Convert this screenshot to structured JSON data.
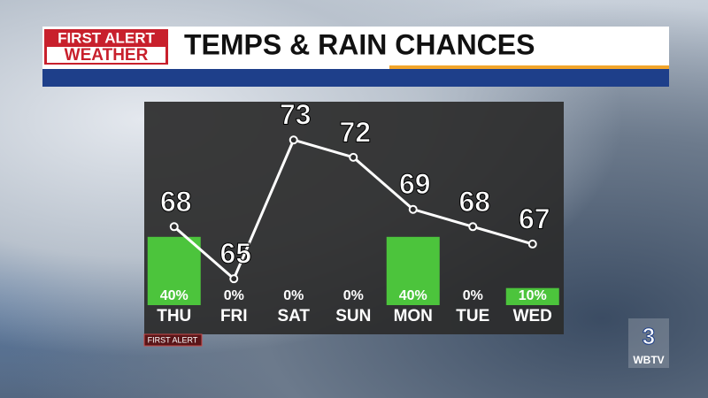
{
  "branding": {
    "logo_top": "FIRST ALERT",
    "logo_bottom": "WEATHER",
    "tag": "FIRST ALERT",
    "station": "WBTV"
  },
  "chart_data": {
    "type": "combo",
    "title": "TEMPS & RAIN CHANCES",
    "categories": [
      "THU",
      "FRI",
      "SAT",
      "SUN",
      "MON",
      "TUE",
      "WED"
    ],
    "ylim": [
      62,
      75
    ],
    "y2lim": [
      0,
      100
    ],
    "series": [
      {
        "type": "bar",
        "axis": "y2",
        "color": "#4cc43c",
        "values": [
          40,
          0,
          0,
          0,
          40,
          0,
          10
        ],
        "value_labels": [
          "40%",
          "0%",
          "0%",
          "0%",
          "40%",
          "0%",
          "10%"
        ]
      },
      {
        "type": "line",
        "color": "#ffffff",
        "values": [
          68,
          65,
          73,
          72,
          69,
          68,
          67
        ]
      }
    ]
  }
}
